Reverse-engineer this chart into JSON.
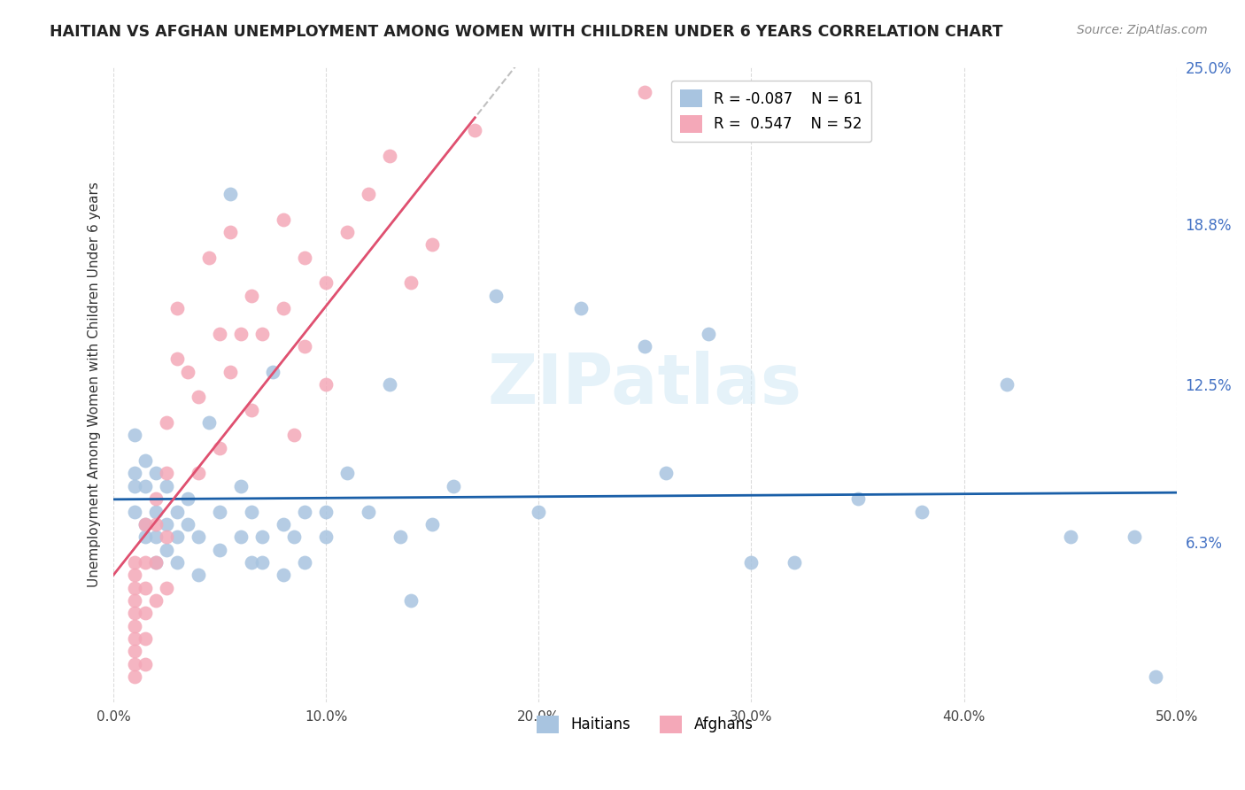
{
  "title": "HAITIAN VS AFGHAN UNEMPLOYMENT AMONG WOMEN WITH CHILDREN UNDER 6 YEARS CORRELATION CHART",
  "source": "Source: ZipAtlas.com",
  "ylabel": "Unemployment Among Women with Children Under 6 years",
  "xlim": [
    0,
    0.5
  ],
  "ylim": [
    0,
    0.25
  ],
  "xticks": [
    0.0,
    0.1,
    0.2,
    0.3,
    0.4,
    0.5
  ],
  "xticklabels": [
    "0.0%",
    "10.0%",
    "20.0%",
    "30.0%",
    "40.0%",
    "50.0%"
  ],
  "yticks_right": [
    0.063,
    0.125,
    0.188,
    0.25
  ],
  "ytick_right_labels": [
    "6.3%",
    "12.5%",
    "18.8%",
    "25.0%"
  ],
  "haitian_color": "#a8c4e0",
  "afghan_color": "#f4a8b8",
  "haitian_line_color": "#1a5fa8",
  "afghan_line_color": "#e05070",
  "legend_haitian_r": "-0.087",
  "legend_haitian_n": "61",
  "legend_afghan_r": "0.547",
  "legend_afghan_n": "52",
  "watermark": "ZIPatlas",
  "haitian_x": [
    0.01,
    0.01,
    0.01,
    0.01,
    0.015,
    0.015,
    0.015,
    0.015,
    0.02,
    0.02,
    0.02,
    0.02,
    0.025,
    0.025,
    0.025,
    0.03,
    0.03,
    0.03,
    0.035,
    0.035,
    0.04,
    0.04,
    0.045,
    0.05,
    0.05,
    0.055,
    0.06,
    0.06,
    0.065,
    0.065,
    0.07,
    0.07,
    0.075,
    0.08,
    0.08,
    0.085,
    0.09,
    0.09,
    0.1,
    0.1,
    0.11,
    0.12,
    0.13,
    0.135,
    0.14,
    0.15,
    0.16,
    0.18,
    0.2,
    0.22,
    0.25,
    0.26,
    0.28,
    0.3,
    0.32,
    0.35,
    0.38,
    0.42,
    0.45,
    0.48,
    0.49
  ],
  "haitian_y": [
    0.105,
    0.09,
    0.085,
    0.075,
    0.095,
    0.085,
    0.07,
    0.065,
    0.09,
    0.075,
    0.065,
    0.055,
    0.085,
    0.07,
    0.06,
    0.075,
    0.065,
    0.055,
    0.07,
    0.08,
    0.065,
    0.05,
    0.11,
    0.075,
    0.06,
    0.2,
    0.085,
    0.065,
    0.075,
    0.055,
    0.065,
    0.055,
    0.13,
    0.07,
    0.05,
    0.065,
    0.075,
    0.055,
    0.075,
    0.065,
    0.09,
    0.075,
    0.125,
    0.065,
    0.04,
    0.07,
    0.085,
    0.16,
    0.075,
    0.155,
    0.14,
    0.09,
    0.145,
    0.055,
    0.055,
    0.08,
    0.075,
    0.125,
    0.065,
    0.065,
    0.01
  ],
  "afghan_x": [
    0.01,
    0.01,
    0.01,
    0.01,
    0.01,
    0.01,
    0.01,
    0.01,
    0.01,
    0.01,
    0.015,
    0.015,
    0.015,
    0.015,
    0.015,
    0.015,
    0.02,
    0.02,
    0.02,
    0.02,
    0.025,
    0.025,
    0.025,
    0.025,
    0.03,
    0.03,
    0.035,
    0.04,
    0.04,
    0.045,
    0.05,
    0.05,
    0.055,
    0.055,
    0.06,
    0.065,
    0.065,
    0.07,
    0.08,
    0.08,
    0.085,
    0.09,
    0.09,
    0.1,
    0.1,
    0.11,
    0.12,
    0.13,
    0.14,
    0.15,
    0.17,
    0.25
  ],
  "afghan_y": [
    0.055,
    0.05,
    0.045,
    0.04,
    0.035,
    0.03,
    0.025,
    0.02,
    0.015,
    0.01,
    0.07,
    0.055,
    0.045,
    0.035,
    0.025,
    0.015,
    0.08,
    0.07,
    0.055,
    0.04,
    0.11,
    0.09,
    0.065,
    0.045,
    0.155,
    0.135,
    0.13,
    0.12,
    0.09,
    0.175,
    0.145,
    0.1,
    0.185,
    0.13,
    0.145,
    0.16,
    0.115,
    0.145,
    0.19,
    0.155,
    0.105,
    0.175,
    0.14,
    0.165,
    0.125,
    0.185,
    0.2,
    0.215,
    0.165,
    0.18,
    0.225,
    0.24
  ]
}
